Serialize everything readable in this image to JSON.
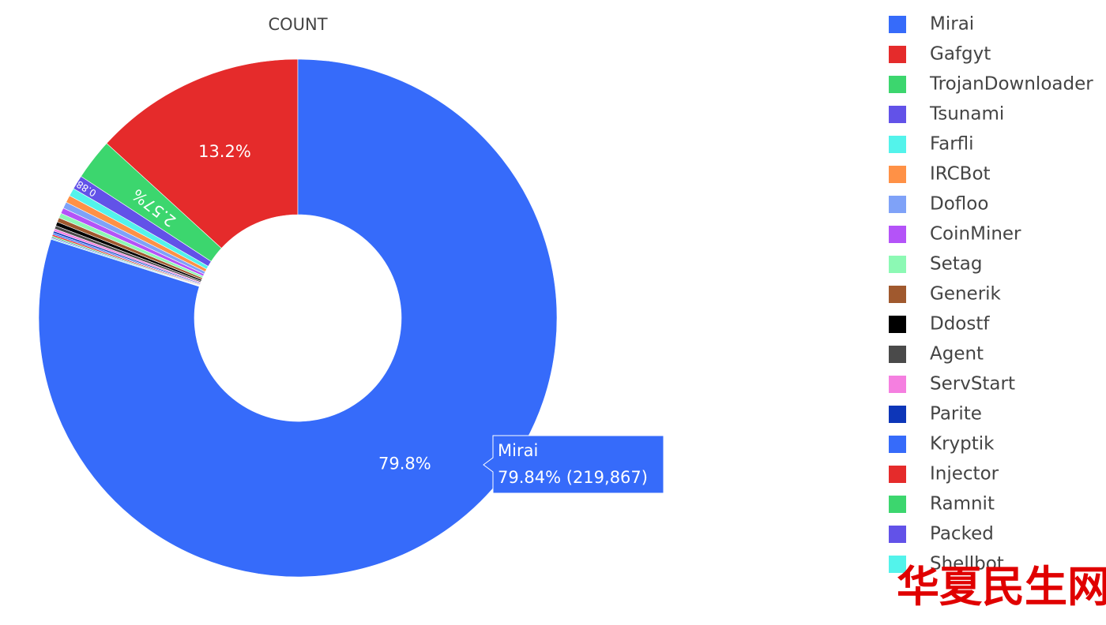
{
  "chart_data": {
    "type": "pie",
    "title": "COUNT",
    "hole": true,
    "categories": [
      "Mirai",
      "Gafgyt",
      "TrojanDownloader",
      "Tsunami",
      "Farfli",
      "IRCBot",
      "Dofloo",
      "CoinMiner",
      "Setag",
      "Generik",
      "Ddostf",
      "Agent",
      "ServStart",
      "Parite",
      "Kryptik",
      "Injector",
      "Ramnit",
      "Packed",
      "Shellbot"
    ],
    "values": [
      79.84,
      13.2,
      2.57,
      0.88,
      0.5,
      0.45,
      0.4,
      0.35,
      0.3,
      0.28,
      0.25,
      0.2,
      0.15,
      0.12,
      0.1,
      0.1,
      0.08,
      0.07,
      0.06
    ],
    "value_labels": [
      "79.8%",
      "13.2%",
      "2.57%",
      "0.88%",
      null,
      null,
      null,
      null,
      null,
      null,
      null,
      null,
      null,
      null,
      null,
      null,
      null,
      null,
      null
    ],
    "colors": [
      "#366BFA",
      "#E52B2B",
      "#3CD66E",
      "#6252E8",
      "#53F3EB",
      "#FF9146",
      "#7FA2F8",
      "#B453F8",
      "#8CF9B4",
      "#A0592E",
      "#000000",
      "#4A4A4A",
      "#F57FE0",
      "#0D36B8",
      "#366BFA",
      "#E52B2B",
      "#3CD66E",
      "#6252E8",
      "#53F3EB"
    ],
    "legend": "right",
    "tooltip": {
      "name": "Mirai",
      "label": "79.84% (219,867)"
    }
  },
  "watermark": "华夏民生网"
}
